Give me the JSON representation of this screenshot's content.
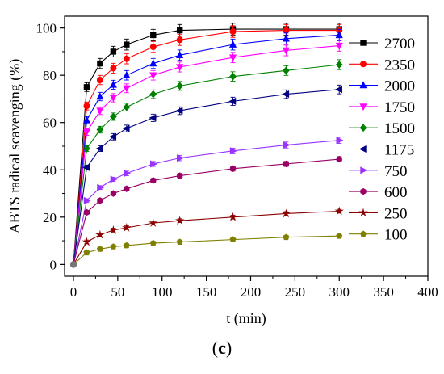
{
  "chart_data": {
    "type": "line",
    "xlabel": "t (min)",
    "ylabel": "ABTS radical scavenging (%)",
    "xlim": [
      -10,
      400
    ],
    "ylim": [
      -5,
      105
    ],
    "xticks": [
      "0",
      "50",
      "100",
      "150",
      "200",
      "250",
      "300",
      "350",
      "400"
    ],
    "yticks": [
      "0",
      "20",
      "40",
      "60",
      "80",
      "100"
    ],
    "x": [
      0,
      15,
      30,
      45,
      60,
      90,
      120,
      180,
      240,
      300
    ],
    "legend_position": "right",
    "series": [
      {
        "name": "2700",
        "color": "#000000",
        "marker": "square",
        "values": [
          0,
          75,
          85,
          90,
          93,
          97,
          99,
          99.5,
          99.5,
          99.5
        ]
      },
      {
        "name": "2350",
        "color": "#ff0000",
        "marker": "circle",
        "values": [
          0,
          67,
          78,
          83,
          87,
          92,
          95,
          98.5,
          99,
          99
        ]
      },
      {
        "name": "2000",
        "color": "#0000ff",
        "marker": "triangle-up",
        "values": [
          0,
          61,
          71,
          76,
          80,
          85,
          88.5,
          93,
          95.5,
          97
        ]
      },
      {
        "name": "1750",
        "color": "#ff00ff",
        "marker": "triangle-down",
        "values": [
          0,
          56,
          65,
          70.5,
          74.5,
          80,
          83.5,
          87.5,
          90.5,
          92.5
        ]
      },
      {
        "name": "1500",
        "color": "#008000",
        "marker": "diamond",
        "values": [
          0,
          49,
          57,
          62.5,
          66.5,
          72,
          75.5,
          79.5,
          82,
          84.5
        ]
      },
      {
        "name": "1175",
        "color": "#000080",
        "marker": "triangle-left",
        "values": [
          0,
          41,
          49,
          54,
          57.5,
          62,
          65,
          69,
          72,
          74
        ]
      },
      {
        "name": "750",
        "color": "#9933ff",
        "marker": "triangle-right",
        "values": [
          0,
          27,
          32.5,
          36,
          38.5,
          42.5,
          45,
          48,
          50.5,
          52.5
        ]
      },
      {
        "name": "600",
        "color": "#990066",
        "marker": "hexagon",
        "values": [
          0,
          22,
          27,
          30,
          32,
          35.5,
          37.5,
          40.5,
          42.5,
          44.5
        ]
      },
      {
        "name": "250",
        "color": "#8b0000",
        "marker": "star",
        "values": [
          0,
          9.5,
          12.5,
          14.5,
          15.5,
          17.5,
          18.5,
          20,
          21.5,
          22.5
        ]
      },
      {
        "name": "100",
        "color": "#808000",
        "marker": "pentagon",
        "values": [
          0,
          5,
          6.5,
          7.5,
          8,
          9,
          9.5,
          10.5,
          11.5,
          12
        ]
      }
    ]
  },
  "panel_label": "c"
}
